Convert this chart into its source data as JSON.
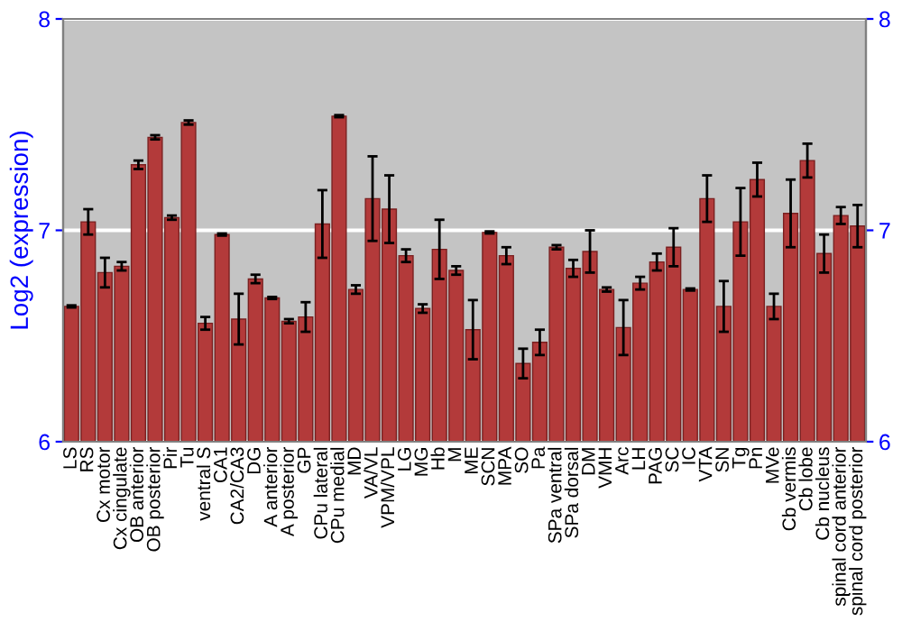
{
  "chart_data": {
    "type": "bar",
    "ylabel": "Log2 (expression)",
    "categories": [
      "LS",
      "RS",
      "Cx motor",
      "Cx cingulate",
      "OB anterior",
      "OB posterior",
      "Pir",
      "Tu",
      "ventral S",
      "CA1",
      "CA2/CA3",
      "DG",
      "A anterior",
      "A posterior",
      "GP",
      "CPu lateral",
      "CPu medial",
      "MD",
      "VA/VL",
      "VPM/VPL",
      "LG",
      "MG",
      "Hb",
      "M",
      "ME",
      "SCN",
      "MPA",
      "SO",
      "Pa",
      "SPa ventral",
      "SPa dorsal",
      "DM",
      "VMH",
      "Arc",
      "LH",
      "PAG",
      "SC",
      "IC",
      "VTA",
      "SN",
      "Tg",
      "Pn",
      "MVe",
      "Cb vermis",
      "Cb lobe",
      "Cb nucleus",
      "spinal cord anterior",
      "spinal cord posterior"
    ],
    "values": [
      6.64,
      7.04,
      6.8,
      6.83,
      7.31,
      7.44,
      7.06,
      7.51,
      6.56,
      6.98,
      6.58,
      6.77,
      6.68,
      6.57,
      6.59,
      7.03,
      7.54,
      6.72,
      7.15,
      7.1,
      6.88,
      6.63,
      6.91,
      6.81,
      6.53,
      6.99,
      6.88,
      6.37,
      6.47,
      6.92,
      6.82,
      6.9,
      6.72,
      6.54,
      6.75,
      6.85,
      6.92,
      6.72,
      7.15,
      6.64,
      7.04,
      7.24,
      6.64,
      7.08,
      7.33,
      6.89,
      7.07,
      7.02
    ],
    "errors": [
      0.005,
      0.06,
      0.07,
      0.02,
      0.02,
      0.01,
      0.01,
      0.01,
      0.03,
      0.005,
      0.12,
      0.02,
      0.005,
      0.01,
      0.07,
      0.16,
      0.005,
      0.02,
      0.2,
      0.16,
      0.03,
      0.02,
      0.14,
      0.02,
      0.14,
      0.005,
      0.04,
      0.07,
      0.06,
      0.01,
      0.04,
      0.1,
      0.01,
      0.13,
      0.03,
      0.04,
      0.09,
      0.005,
      0.11,
      0.12,
      0.16,
      0.08,
      0.06,
      0.16,
      0.08,
      0.09,
      0.04,
      0.1
    ],
    "color": "#b33a3a",
    "ylim": [
      6,
      8
    ],
    "yticks": [
      6,
      7,
      8
    ],
    "y2lim": [
      6,
      8
    ],
    "y2ticks": [
      6,
      7,
      8
    ],
    "grid": "y"
  }
}
